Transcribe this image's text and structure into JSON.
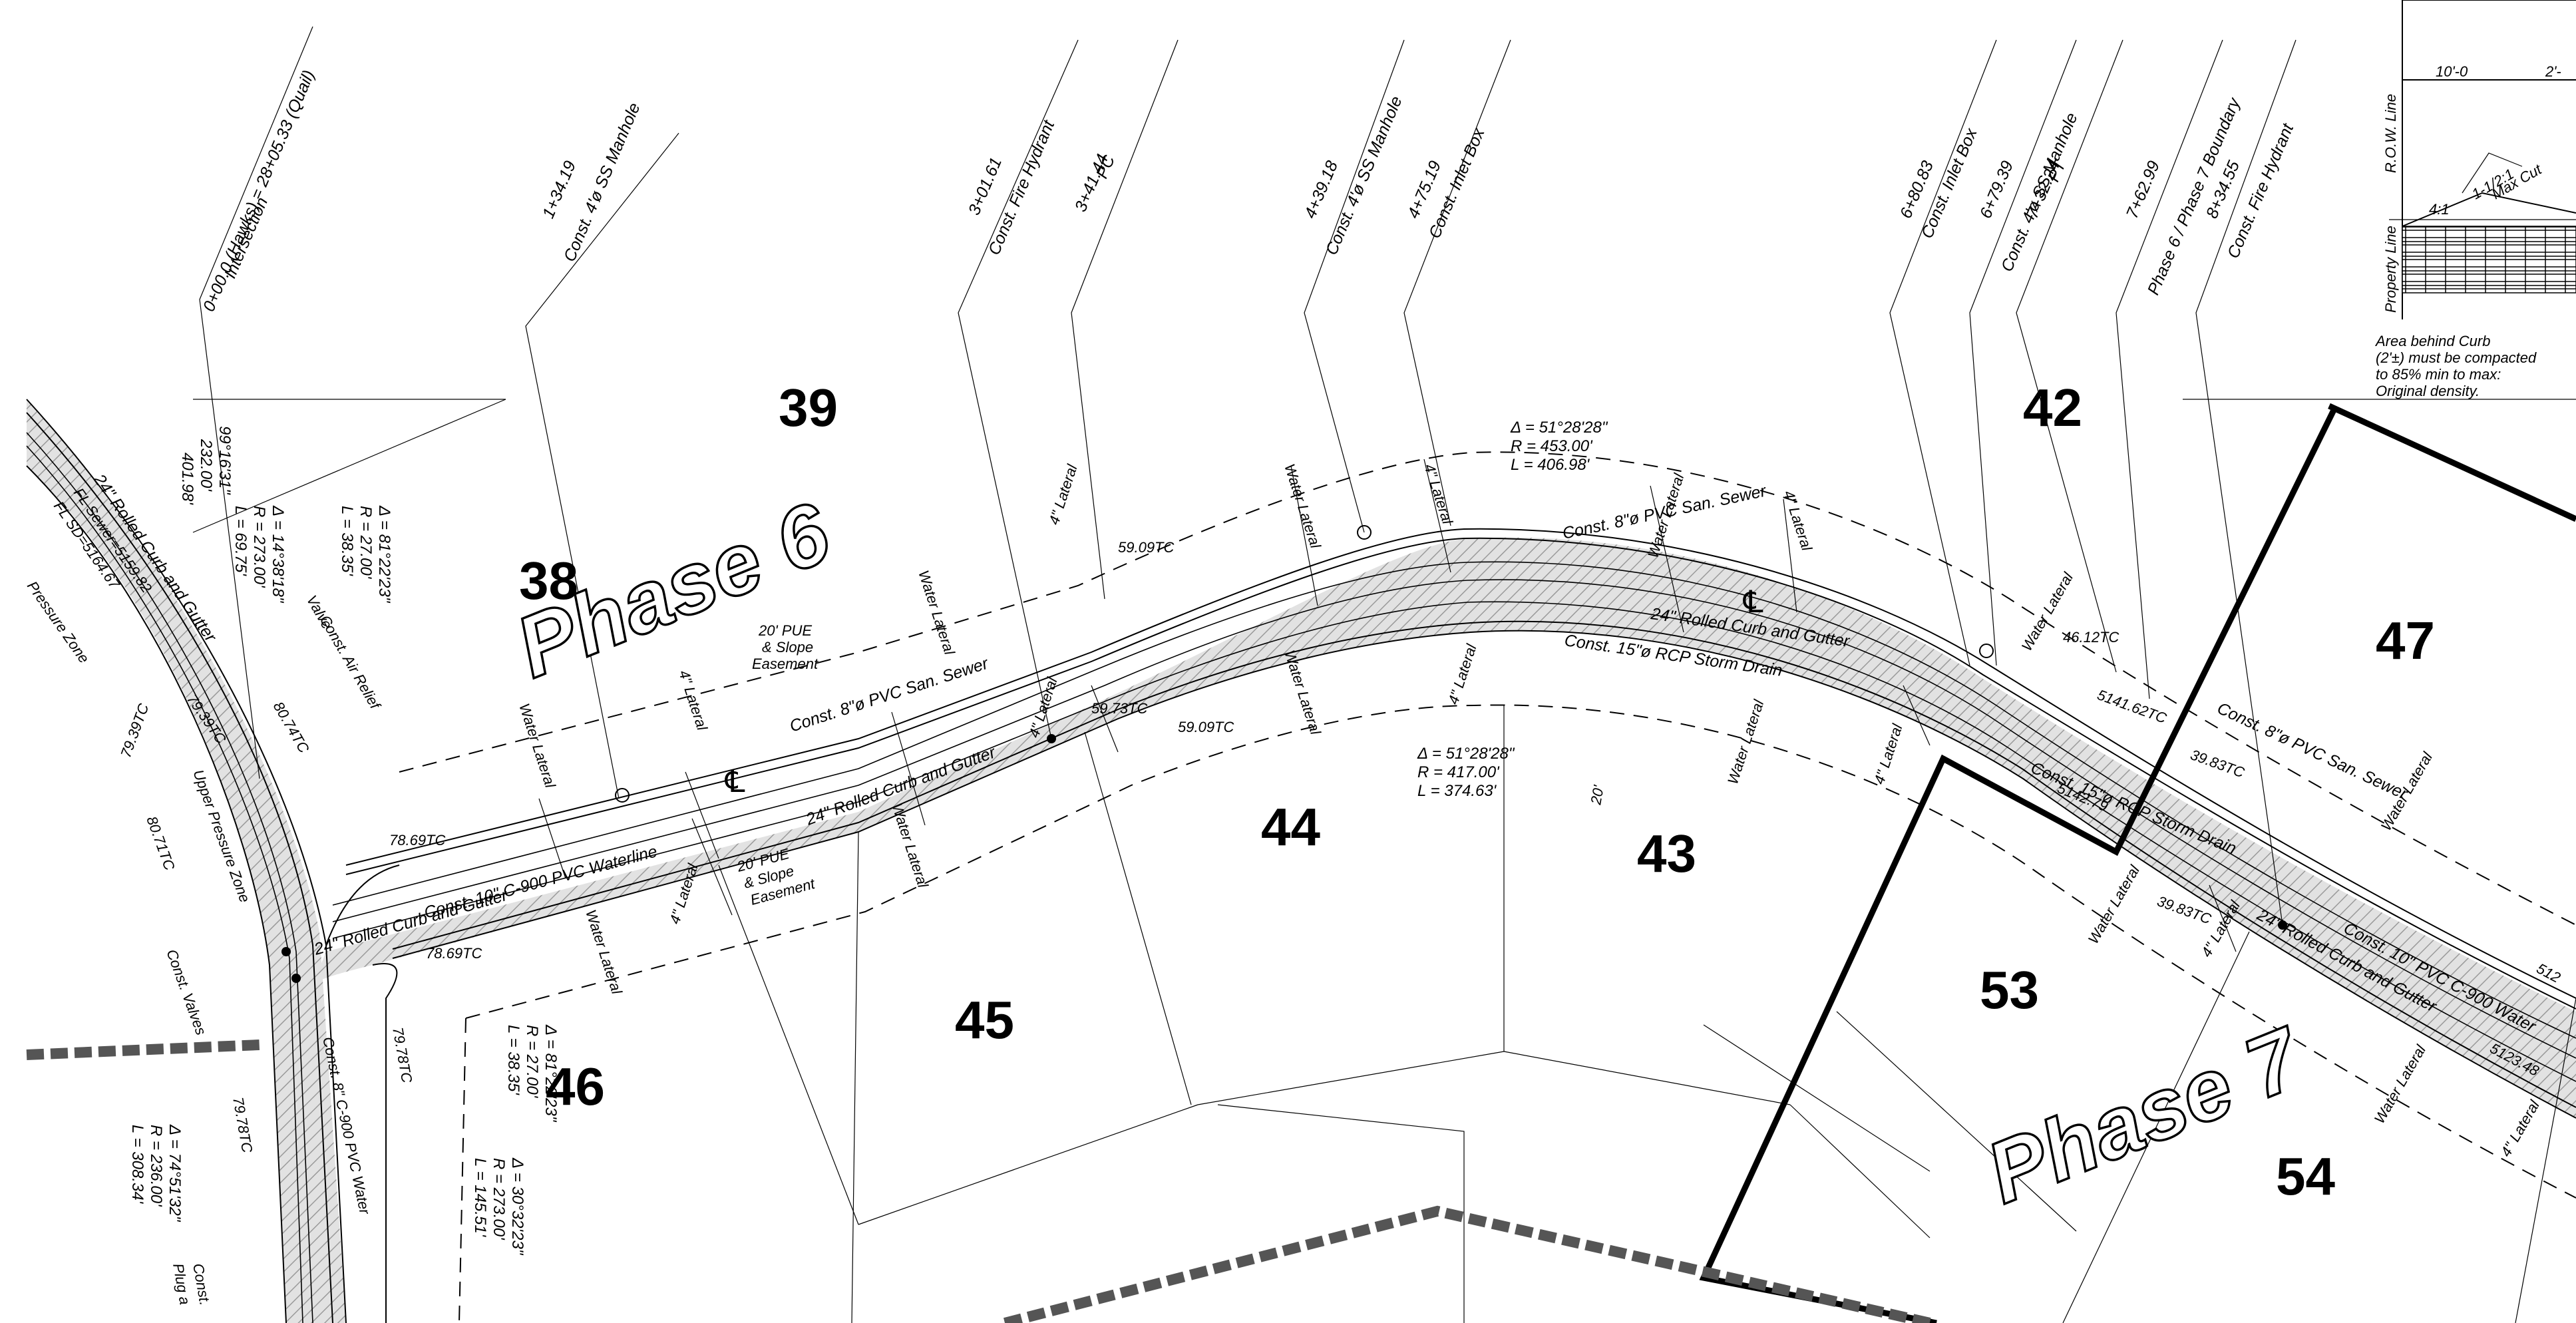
{
  "lots": [
    {
      "id": "lot-38",
      "label": "38"
    },
    {
      "id": "lot-39",
      "label": "39"
    },
    {
      "id": "lot-42",
      "label": "42"
    },
    {
      "id": "lot-43",
      "label": "43"
    },
    {
      "id": "lot-44",
      "label": "44"
    },
    {
      "id": "lot-45",
      "label": "45"
    },
    {
      "id": "lot-46",
      "label": "46"
    },
    {
      "id": "lot-47",
      "label": "47"
    },
    {
      "id": "lot-53",
      "label": "53"
    },
    {
      "id": "lot-54",
      "label": "54"
    }
  ],
  "phases": {
    "phase6": "Phase 6",
    "phase7": "Phase 7"
  },
  "stations": [
    {
      "sta": "0+00.0 (Hawks) = 28+05.33 (Quail)",
      "desc": "Intersection"
    },
    {
      "sta": "1+34.19",
      "desc": "Const. 4'ø SS Manhole"
    },
    {
      "sta": "3+01.61",
      "desc": "Const. Fire Hydrant"
    },
    {
      "sta": "3+41.44",
      "desc": "PC"
    },
    {
      "sta": "4+39.18",
      "desc": "Const. 4'ø SS Manhole"
    },
    {
      "sta": "4+75.19",
      "desc": "Const. Inlet Box"
    },
    {
      "sta": "6+80.83",
      "desc": "Const. Inlet Box"
    },
    {
      "sta": "6+79.39",
      "desc": "Const. 4'ø SS Manhole"
    },
    {
      "sta": "7+32.24",
      "desc": "PT"
    },
    {
      "sta": "7+62.99",
      "desc": "Phase 6 / Phase 7 Boundary"
    },
    {
      "sta": "8+34.55",
      "desc": "Const. Fire Hydrant"
    }
  ],
  "curves": {
    "c_top": [
      "Δ = 51°28'28\"",
      "R = 453.00'",
      "L = 406.98'"
    ],
    "c_bot": [
      "Δ = 51°28'28\"",
      "R = 417.00'",
      "L = 374.63'"
    ],
    "c_a": [
      "Δ = 14°38'18\"",
      "R = 273.00'",
      "L = 69.75'"
    ],
    "c_b": [
      "Δ = 81°22'23\"",
      "R = 27.00'",
      "L = 38.35'"
    ],
    "c_c": [
      "Δ = 81°22'23\"",
      "R = 27.00'",
      "L = 38.35'"
    ],
    "c_d": [
      "Δ = 30°32'23\"",
      "R = 273.00'",
      "L = 145.51'"
    ],
    "c_e": [
      "Δ = 74°51'32\"",
      "R = 236.00'",
      "L = 308.34'"
    ],
    "c_f": [
      "99°16'31\"",
      "232.00'",
      "401.98'"
    ]
  },
  "labels": {
    "rolled_curb": "24\" Rolled Curb and Gutter",
    "rolled_curb_short": "24\" Rolled Curb and Gutter",
    "pvc_sewer": "Const. 8\"ø PVC San. Sewer",
    "waterline": "Const. 10\" C-900 PVC Waterline",
    "storm_drain": "Const. 15\"ø RCP Storm Drain",
    "water_lateral": "Water Lateral",
    "lateral_4": "4\" Lateral",
    "pue": "20' PUE",
    "slope": "& Slope",
    "easement": "Easement",
    "air_relief": "Const. Air Relief",
    "valve": "Valve",
    "const_valves": "Const. Valves",
    "upper_zone": "Upper Pressure Zone",
    "fl_sewer": "FL Sewer=5159.82",
    "fl_sd": "FL SD=5164.67",
    "pressure_zone": "Pressure Zone",
    "const_8_c900": "Const. 8\" C-900 PVC Water",
    "const_10_c900": "Const. 10\" PVC C-900 Water",
    "const_plug": "Const.",
    "plug": "Plug a",
    "width_20": "20'",
    "tc_7869": "78.69TC",
    "tc_7869b": "78.69TC",
    "tc_5909": "59.09TC",
    "tc_5909b": "59.09TC",
    "tc_5973": "59.73TC",
    "tc_4612": "46.12TC",
    "tc_4162": "5141.62TC",
    "tc_3983": "39.83TC",
    "tc_3983b": "39.83TC",
    "tc_7939": "79.39TC",
    "tc_8074": "80.74TC",
    "tc_8071": "80.71TC",
    "tc_7978": "79.78TC",
    "tc_7978b": "79.78TC",
    "tc_7939b": "79.39TC",
    "tc_5123": "5123.48",
    "tc_512": "512",
    "fl_top": "5142.79",
    "cl": "℄"
  },
  "detail": {
    "dim": "10'-0",
    "dim2": "2'-",
    "row": "R.O.W. Line",
    "prop": "Property Line",
    "max_cut": "Max Cut",
    "cut_ratio": "1-1/2:1",
    "slope_41": "4:1",
    "note1": "Area behind Curb",
    "note2": "(2'±) must be compacted",
    "note3": "to 85% min to max:",
    "note4": "Original density."
  },
  "colors": {
    "line": "#000000",
    "road_fill": "#d9d9d9",
    "background": "#ffffff"
  }
}
